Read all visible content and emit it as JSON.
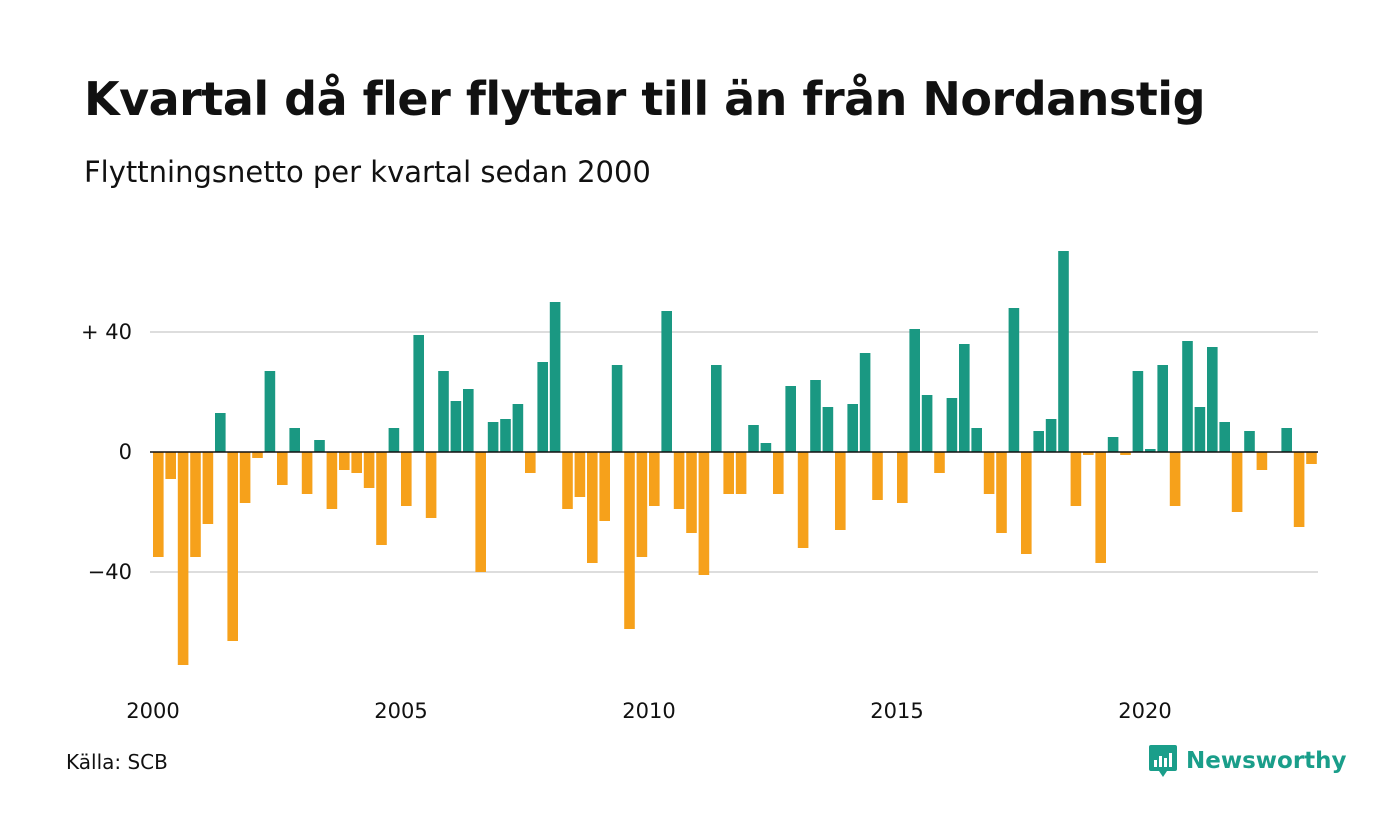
{
  "title": "Kvartal då fler flyttar till än från Nordanstig",
  "subtitle": "Flyttningsnetto per kvartal sedan 2000",
  "source": "Källa: SCB",
  "brand": {
    "name": "Newsworthy",
    "icon": "newsworthy-logo-icon"
  },
  "colors": {
    "positive": "#1a9882",
    "negative": "#f6a11b",
    "grid": "#dddddd",
    "axis": "#111111"
  },
  "chart_data": {
    "type": "bar",
    "start": "2000 Q1",
    "period": "quarter",
    "x_ticks": [
      "2000",
      "2005",
      "2010",
      "2015",
      "2020"
    ],
    "y_ticks": [
      {
        "value": 40,
        "label": "+ 40"
      },
      {
        "value": 0,
        "label": "0"
      },
      {
        "value": -40,
        "label": "−40"
      }
    ],
    "ylim": [
      -75,
      68
    ],
    "grid": true,
    "values": [
      -35,
      -9,
      -71,
      -35,
      -24,
      13,
      -63,
      -17,
      -2,
      27,
      -11,
      8,
      -14,
      4,
      -19,
      -6,
      -7,
      -12,
      -31,
      8,
      -18,
      39,
      -22,
      27,
      17,
      21,
      -40,
      10,
      11,
      16,
      -7,
      30,
      50,
      -19,
      -15,
      -37,
      -23,
      29,
      -59,
      -35,
      -18,
      47,
      -19,
      -27,
      -41,
      29,
      -14,
      -14,
      9,
      3,
      -14,
      22,
      -32,
      24,
      15,
      -26,
      16,
      33,
      -16,
      0,
      -17,
      41,
      19,
      -7,
      18,
      36,
      8,
      -14,
      -27,
      48,
      -34,
      7,
      11,
      67,
      -18,
      -1,
      -37,
      5,
      -1,
      27,
      1,
      29,
      -18,
      37,
      15,
      35,
      10,
      -20,
      7,
      -6,
      0,
      8,
      -25,
      -4
    ]
  }
}
